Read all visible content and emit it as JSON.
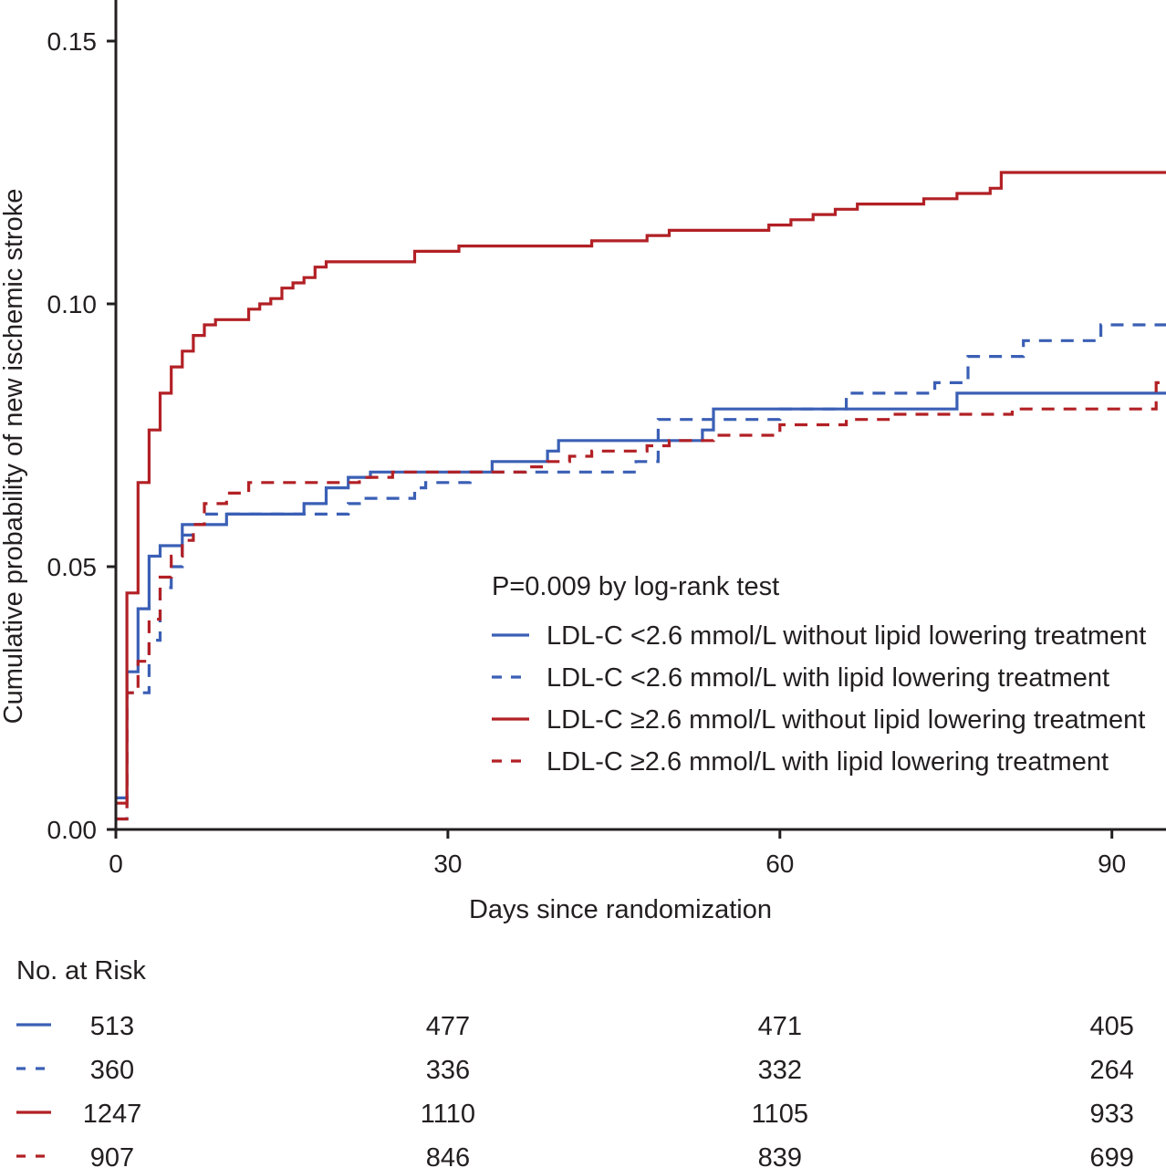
{
  "chart_data": {
    "type": "line",
    "subtype": "kaplan-meier cumulative incidence",
    "xlabel": "Days since randomization",
    "ylabel": "Cumulative probability of new ischemic stroke",
    "xlim": [
      0,
      95
    ],
    "ylim": [
      0,
      0.158
    ],
    "x_ticks": [
      0,
      30,
      60,
      90
    ],
    "x_tick_labels": [
      "0",
      "30",
      "60",
      "90"
    ],
    "y_ticks": [
      0,
      0.05,
      0.1,
      0.15
    ],
    "y_tick_labels": [
      "0.00",
      "0.05",
      "0.10",
      "0.15"
    ],
    "grid": false,
    "annotation": "P=0.009 by log-rank test",
    "legend_position": "lower-right",
    "series": [
      {
        "name": "LDL-C <2.6 mmol/L without lipid lowering treatment",
        "color": "#3a5fb5",
        "style": "solid",
        "x": [
          0,
          1,
          2,
          3,
          4,
          6,
          8,
          10,
          15,
          17,
          19,
          21,
          23,
          34,
          39,
          40,
          43,
          50,
          53,
          54,
          60,
          76,
          95
        ],
        "y": [
          0.006,
          0.03,
          0.042,
          0.052,
          0.054,
          0.058,
          0.058,
          0.06,
          0.06,
          0.062,
          0.065,
          0.067,
          0.068,
          0.07,
          0.072,
          0.074,
          0.074,
          0.074,
          0.076,
          0.08,
          0.08,
          0.083,
          0.083
        ]
      },
      {
        "name": "LDL-C <2.6 mmol/L with lipid lowering treatment",
        "color": "#3a5fb5",
        "style": "dashed",
        "x": [
          0,
          1,
          2,
          3,
          4,
          5,
          6,
          7,
          8,
          21,
          22,
          27,
          28,
          32,
          38,
          44,
          47,
          49,
          54,
          60,
          66,
          74,
          77,
          82,
          89,
          95
        ],
        "y": [
          0.002,
          0.026,
          0.026,
          0.036,
          0.046,
          0.05,
          0.056,
          0.058,
          0.06,
          0.062,
          0.063,
          0.065,
          0.066,
          0.068,
          0.068,
          0.068,
          0.07,
          0.078,
          0.078,
          0.08,
          0.083,
          0.085,
          0.09,
          0.093,
          0.096,
          0.096
        ]
      },
      {
        "name": "LDL-C ≥2.6 mmol/L without lipid lowering treatment",
        "color": "#b22025",
        "style": "solid",
        "x": [
          0,
          1,
          2,
          3,
          4,
          5,
          6,
          7,
          8,
          9,
          12,
          13,
          14,
          15,
          16,
          17,
          18,
          19,
          27,
          31,
          43,
          48,
          50,
          59,
          61,
          63,
          64,
          65,
          66,
          67,
          68,
          73,
          76,
          79,
          80,
          95
        ],
        "y": [
          0.005,
          0.045,
          0.066,
          0.076,
          0.083,
          0.088,
          0.091,
          0.094,
          0.096,
          0.097,
          0.099,
          0.1,
          0.101,
          0.103,
          0.104,
          0.105,
          0.107,
          0.108,
          0.11,
          0.111,
          0.112,
          0.113,
          0.114,
          0.115,
          0.116,
          0.117,
          0.117,
          0.118,
          0.118,
          0.119,
          0.119,
          0.12,
          0.121,
          0.122,
          0.125,
          0.125
        ]
      },
      {
        "name": "LDL-C ≥2.6 mmol/L with lipid lowering treatment",
        "color": "#b22025",
        "style": "dashed",
        "x": [
          0,
          1,
          2,
          3,
          4,
          5,
          6,
          7,
          8,
          10,
          12,
          22,
          25,
          30,
          37,
          39,
          41,
          43,
          46,
          48,
          50,
          54,
          60,
          66,
          70,
          81,
          94,
          95
        ],
        "y": [
          0.002,
          0.026,
          0.032,
          0.04,
          0.048,
          0.052,
          0.055,
          0.058,
          0.062,
          0.064,
          0.066,
          0.067,
          0.068,
          0.068,
          0.069,
          0.07,
          0.071,
          0.072,
          0.072,
          0.073,
          0.074,
          0.075,
          0.077,
          0.078,
          0.079,
          0.08,
          0.085,
          0.085
        ]
      }
    ],
    "risk_table": {
      "title": "No. at Risk",
      "timepoints": [
        0,
        30,
        60,
        90
      ],
      "rows": [
        {
          "values": [
            "513",
            "477",
            "471",
            "405"
          ]
        },
        {
          "values": [
            "360",
            "336",
            "332",
            "264"
          ]
        },
        {
          "values": [
            "1247",
            "1110",
            "1105",
            "933"
          ]
        },
        {
          "values": [
            "907",
            "846",
            "839",
            "699"
          ]
        }
      ]
    }
  }
}
